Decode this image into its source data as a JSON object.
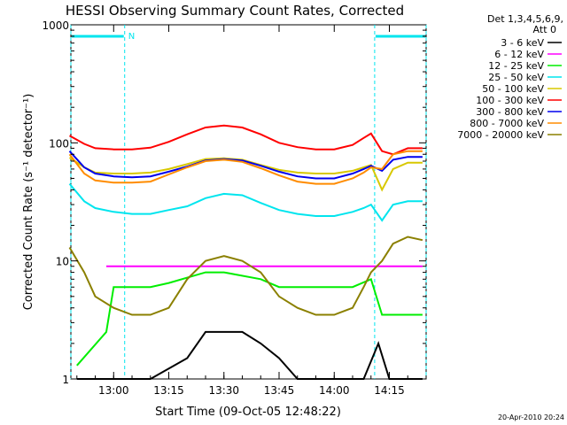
{
  "chart_data": {
    "type": "line",
    "title": "HESSI Observing Summary Count Rates, Corrected",
    "xlabel": "Start Time (09-Oct-05 12:48:22)",
    "ylabel": "Corrected Count Rate (s⁻¹ detector⁻¹)",
    "yscale": "log",
    "ylim": [
      1,
      1000
    ],
    "xlim": [
      "12:48:22",
      "14:25:00"
    ],
    "x_ticks": [
      "13:00",
      "13:15",
      "13:30",
      "13:45",
      "14:00",
      "14:15"
    ],
    "y_ticks": [
      "1",
      "10",
      "100",
      "1000"
    ],
    "legend_header": [
      "Det 1,3,4,5,6,9,",
      "Att 0"
    ],
    "legend_position": "right",
    "grid": false,
    "timestamp": "20-Apr-2010 20:24",
    "night_marker_label": "N",
    "night_periods": [
      [
        "12:48:22",
        "13:03:00"
      ],
      [
        "14:11:00",
        "14:25:00"
      ]
    ],
    "series": [
      {
        "name": "3 - 6 keV",
        "color": "#000000",
        "x": [
          "12:50",
          "13:00",
          "13:10",
          "13:20",
          "13:25",
          "13:30",
          "13:35",
          "13:40",
          "13:45",
          "13:50",
          "14:00",
          "14:08",
          "14:12",
          "14:15",
          "14:20",
          "14:24"
        ],
        "y": [
          1,
          1,
          1,
          1.5,
          2.5,
          2.5,
          2.5,
          2,
          1.5,
          1,
          1,
          1,
          2,
          1,
          1,
          1
        ]
      },
      {
        "name": "6 - 12 keV",
        "color": "#ff00ff",
        "x": [
          "12:58",
          "13:05",
          "13:15",
          "13:25",
          "13:35",
          "13:45",
          "13:55",
          "14:05",
          "14:10",
          "14:15",
          "14:20",
          "14:24"
        ],
        "y": [
          9,
          9,
          9,
          9,
          9,
          9,
          9,
          9,
          9,
          9,
          9,
          9
        ]
      },
      {
        "name": "12 - 25 keV",
        "color": "#00ee00",
        "x": [
          "12:50",
          "12:58",
          "13:00",
          "13:10",
          "13:15",
          "13:25",
          "13:30",
          "13:40",
          "13:45",
          "13:55",
          "14:05",
          "14:10",
          "14:13",
          "14:18",
          "14:24"
        ],
        "y": [
          1.3,
          2.5,
          6,
          6,
          6.5,
          8,
          8,
          7,
          6,
          6,
          6,
          7,
          3.5,
          3.5,
          3.5
        ]
      },
      {
        "name": "25 - 50 keV",
        "color": "#00e5ee",
        "x": [
          "12:48",
          "12:52",
          "12:55",
          "13:00",
          "13:05",
          "13:10",
          "13:15",
          "13:20",
          "13:25",
          "13:30",
          "13:35",
          "13:40",
          "13:45",
          "13:50",
          "13:55",
          "14:00",
          "14:05",
          "14:08",
          "14:10",
          "14:13",
          "14:16",
          "14:20",
          "14:24"
        ],
        "y": [
          45,
          32,
          28,
          26,
          25,
          25,
          27,
          29,
          34,
          37,
          36,
          31,
          27,
          25,
          24,
          24,
          26,
          28,
          30,
          22,
          30,
          32,
          32
        ]
      },
      {
        "name": "50 - 100 keV",
        "color": "#d8c800",
        "x": [
          "12:48",
          "12:52",
          "12:55",
          "13:00",
          "13:05",
          "13:10",
          "13:15",
          "13:20",
          "13:25",
          "13:30",
          "13:35",
          "13:40",
          "13:45",
          "13:50",
          "13:55",
          "14:00",
          "14:05",
          "14:08",
          "14:10",
          "14:13",
          "14:16",
          "14:20",
          "14:24"
        ],
        "y": [
          75,
          62,
          56,
          55,
          55,
          56,
          60,
          66,
          73,
          74,
          72,
          65,
          59,
          56,
          55,
          55,
          58,
          62,
          65,
          40,
          60,
          68,
          68
        ]
      },
      {
        "name": "100 - 300 keV",
        "color": "#ff0000",
        "x": [
          "12:48",
          "12:52",
          "12:55",
          "13:00",
          "13:05",
          "13:10",
          "13:15",
          "13:20",
          "13:25",
          "13:30",
          "13:35",
          "13:40",
          "13:45",
          "13:50",
          "13:55",
          "14:00",
          "14:05",
          "14:08",
          "14:10",
          "14:13",
          "14:16",
          "14:20",
          "14:24"
        ],
        "y": [
          115,
          98,
          90,
          88,
          88,
          91,
          102,
          118,
          135,
          140,
          135,
          118,
          100,
          92,
          88,
          88,
          96,
          110,
          120,
          85,
          80,
          90,
          90
        ]
      },
      {
        "name": "300 - 800 keV",
        "color": "#0000ee",
        "x": [
          "12:48",
          "12:52",
          "12:55",
          "13:00",
          "13:05",
          "13:10",
          "13:15",
          "13:20",
          "13:25",
          "13:30",
          "13:35",
          "13:40",
          "13:45",
          "13:50",
          "13:55",
          "14:00",
          "14:05",
          "14:08",
          "14:10",
          "14:13",
          "14:16",
          "14:20",
          "14:24"
        ],
        "y": [
          85,
          62,
          55,
          52,
          51,
          52,
          57,
          63,
          71,
          73,
          71,
          64,
          57,
          52,
          50,
          50,
          55,
          60,
          64,
          58,
          72,
          76,
          76
        ]
      },
      {
        "name": "800 - 7000 keV",
        "color": "#ff8c00",
        "x": [
          "12:48",
          "12:52",
          "12:55",
          "13:00",
          "13:05",
          "13:10",
          "13:15",
          "13:20",
          "13:25",
          "13:30",
          "13:35",
          "13:40",
          "13:45",
          "13:50",
          "13:55",
          "14:00",
          "14:05",
          "14:08",
          "14:10",
          "14:13",
          "14:16",
          "14:20",
          "14:24"
        ],
        "y": [
          80,
          55,
          48,
          46,
          46,
          47,
          54,
          62,
          70,
          72,
          69,
          61,
          53,
          47,
          45,
          45,
          50,
          56,
          62,
          60,
          80,
          85,
          85
        ]
      },
      {
        "name": "7000 - 20000 keV",
        "color": "#8b8000",
        "x": [
          "12:48",
          "12:52",
          "12:55",
          "13:00",
          "13:05",
          "13:10",
          "13:15",
          "13:20",
          "13:25",
          "13:30",
          "13:35",
          "13:40",
          "13:45",
          "13:50",
          "13:55",
          "14:00",
          "14:05",
          "14:08",
          "14:10",
          "14:13",
          "14:16",
          "14:20",
          "14:24"
        ],
        "y": [
          13,
          8,
          5,
          4,
          3.5,
          3.5,
          4,
          7,
          10,
          11,
          10,
          8,
          5,
          4,
          3.5,
          3.5,
          4,
          6,
          8,
          10,
          14,
          16,
          15
        ]
      }
    ]
  }
}
